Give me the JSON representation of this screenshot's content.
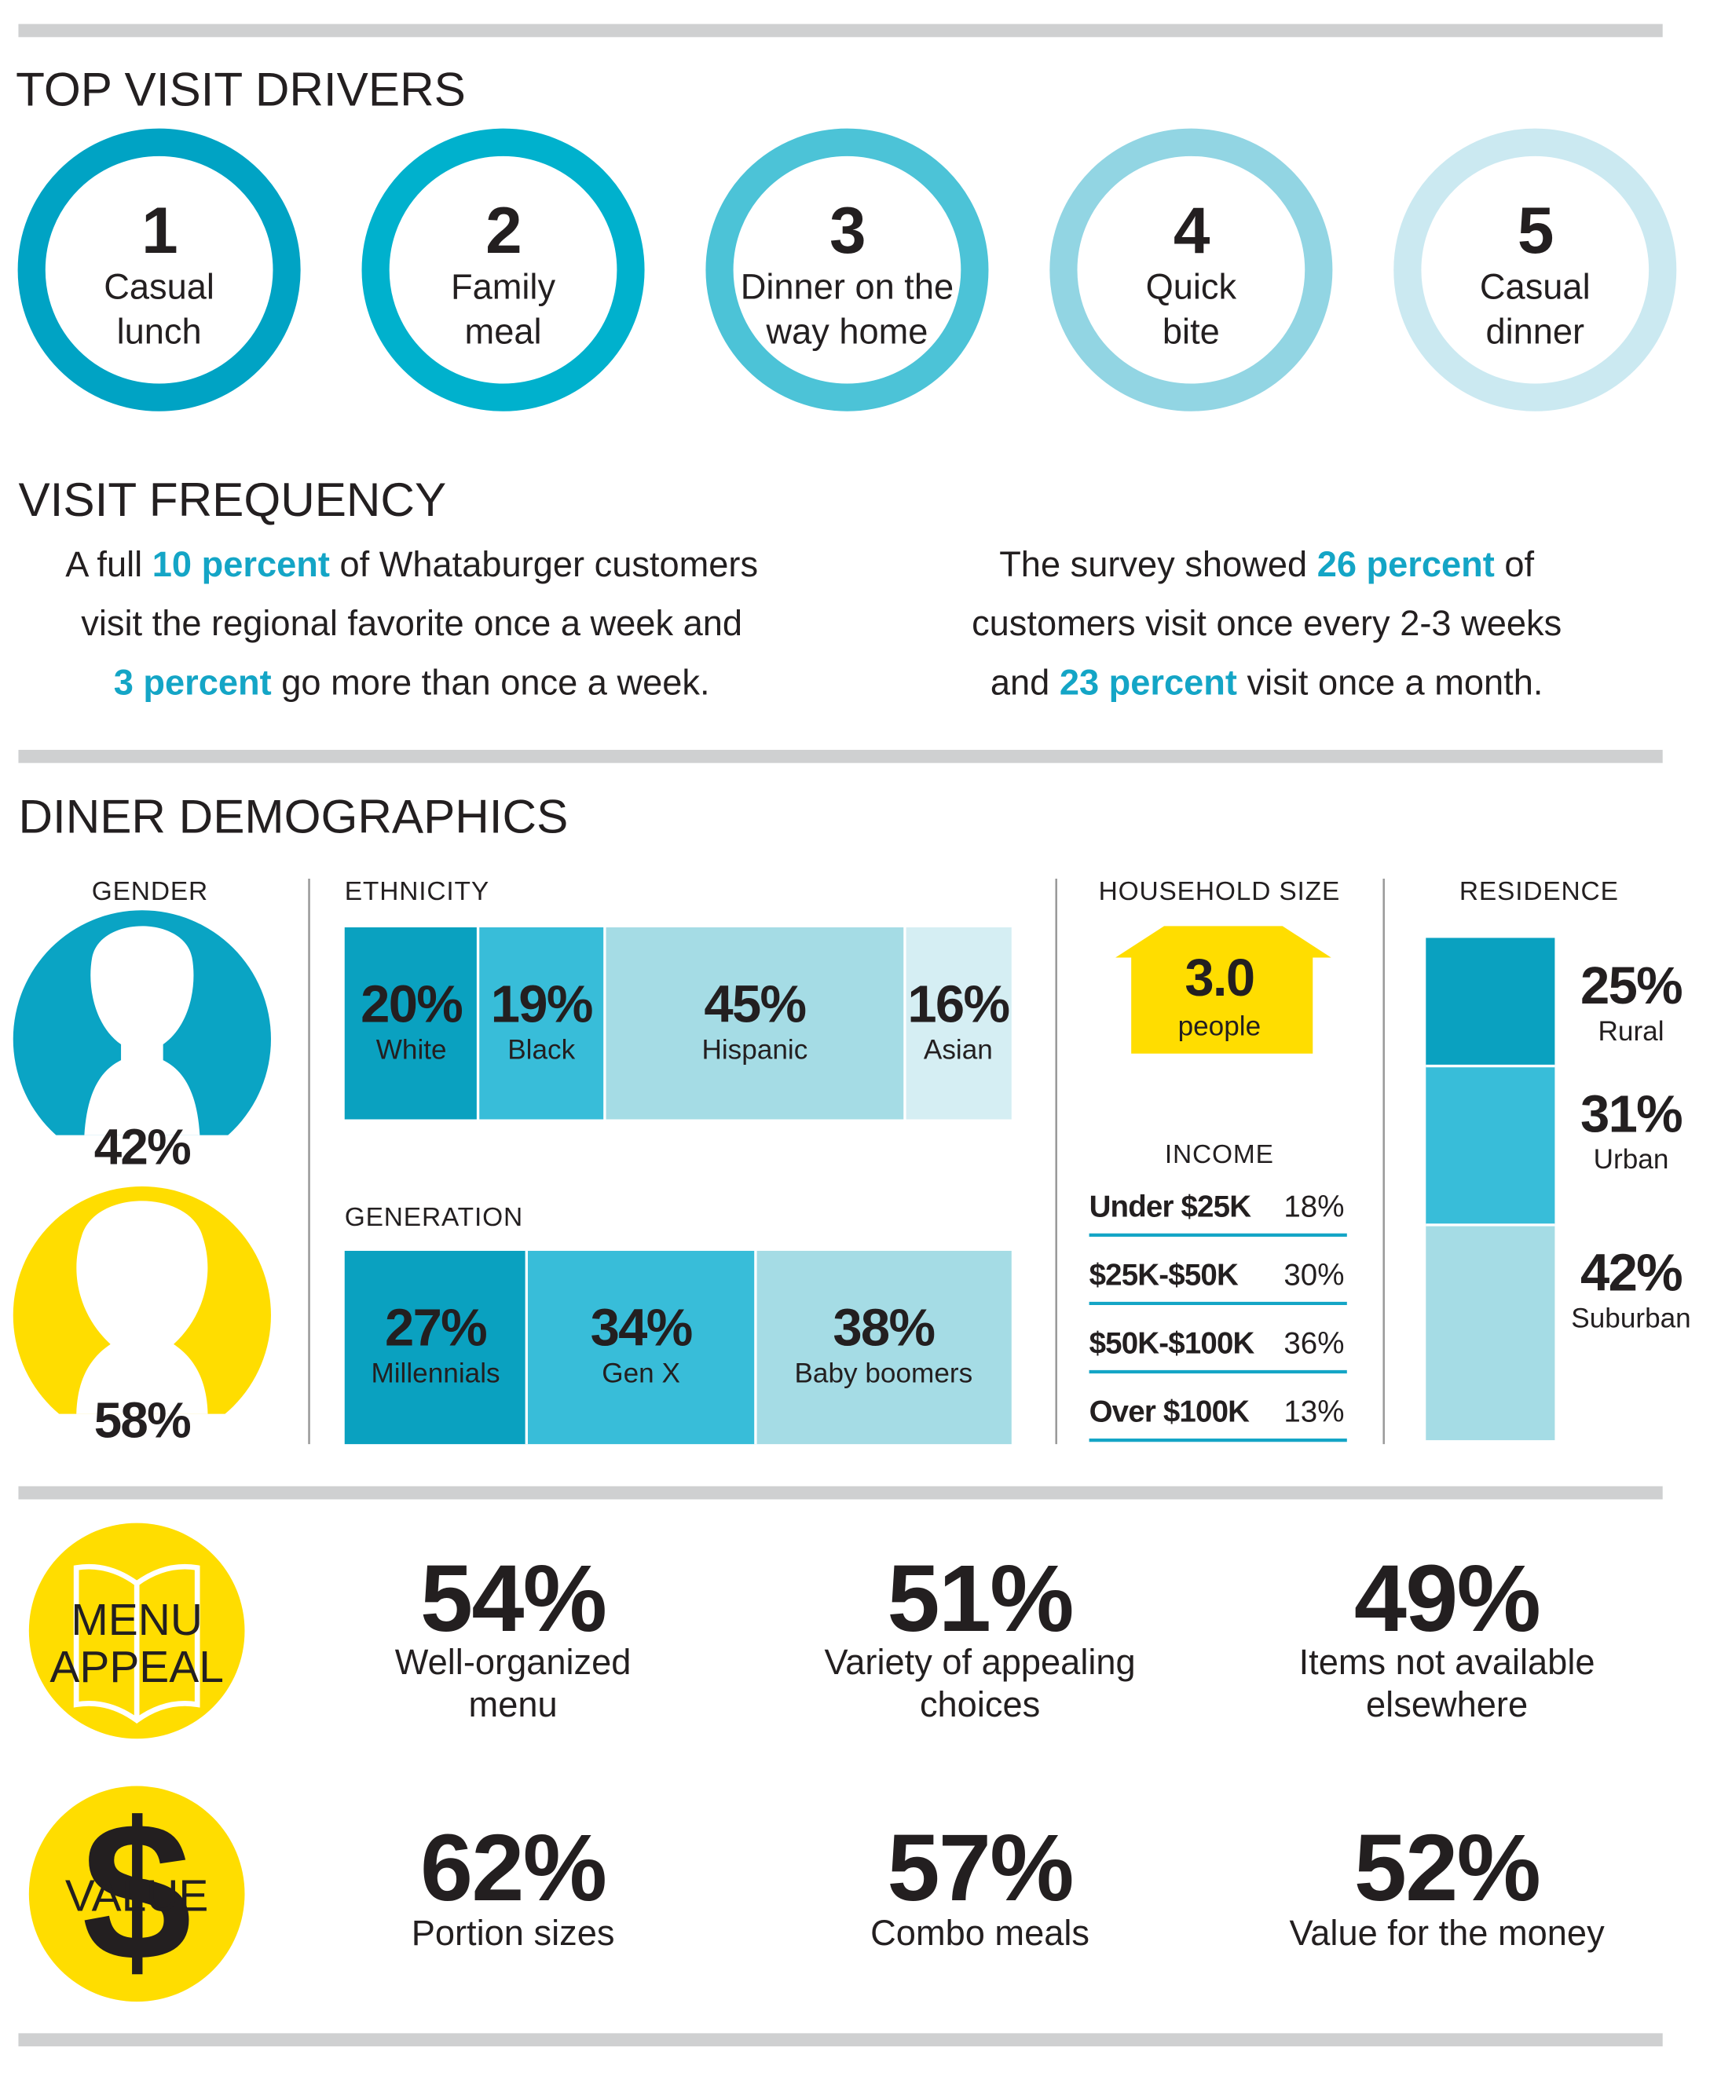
{
  "drivers": {
    "title": "TOP VISIT DRIVERS",
    "items": [
      {
        "rank": 1,
        "lines": [
          "Casual",
          "lunch"
        ],
        "color": "#00a3c4"
      },
      {
        "rank": 2,
        "lines": [
          "Family",
          "meal"
        ],
        "color": "#00b1cd"
      },
      {
        "rank": 3,
        "lines": [
          "Dinner on the",
          "way home"
        ],
        "color": "#4cc3d7"
      },
      {
        "rank": 4,
        "lines": [
          "Quick",
          "bite"
        ],
        "color": "#92d5e3"
      },
      {
        "rank": 5,
        "lines": [
          "Casual",
          "dinner"
        ],
        "color": "#cbe9f1"
      }
    ]
  },
  "frequency": {
    "title": "VISIT FREQUENCY",
    "highlight_color": "#14a5c6",
    "left": [
      [
        {
          "text": "A full "
        },
        {
          "text": "10 percent",
          "em": true
        },
        {
          "text": " of Whataburger customers"
        }
      ],
      [
        {
          "text": "visit the regional favorite once a week and"
        }
      ],
      [
        {
          "text": "3 percent",
          "em": true
        },
        {
          "text": " go more than once a week."
        }
      ]
    ],
    "right": [
      [
        {
          "text": "The survey showed "
        },
        {
          "text": "26 percent",
          "em": true
        },
        {
          "text": " of"
        }
      ],
      [
        {
          "text": "customers visit once every 2-3 weeks"
        }
      ],
      [
        {
          "text": "and "
        },
        {
          "text": "23 percent",
          "em": true
        },
        {
          "text": " visit once a month."
        }
      ]
    ]
  },
  "demographics": {
    "title": "DINER DEMOGRAPHICS",
    "gender": {
      "title": "GENDER",
      "items": [
        {
          "label": "42%",
          "color": "#0aa4c4"
        },
        {
          "label": "58%",
          "color": "#ffdd00"
        }
      ]
    },
    "ethnicity": {
      "title": "ETHNICITY",
      "items": [
        {
          "value": 20,
          "label": "20%",
          "name": "White",
          "color": "#0aa1c0"
        },
        {
          "value": 19,
          "label": "19%",
          "name": "Black",
          "color": "#38bdd9"
        },
        {
          "value": 45,
          "label": "45%",
          "name": "Hispanic",
          "color": "#a5dce5"
        },
        {
          "value": 16,
          "label": "16%",
          "name": "Asian",
          "color": "#d5eef3"
        }
      ]
    },
    "generation": {
      "title": "GENERATION",
      "items": [
        {
          "value": 27,
          "label": "27%",
          "name": "Millennials",
          "color": "#0aa1c0"
        },
        {
          "value": 34,
          "label": "34%",
          "name": "Gen X",
          "color": "#38bdd9"
        },
        {
          "value": 38,
          "label": "38%",
          "name": "Baby boomers",
          "color": "#a5dce5"
        }
      ]
    },
    "household": {
      "title": "HOUSEHOLD SIZE",
      "value": "3.0",
      "unit": "people",
      "color": "#ffdd00"
    },
    "income": {
      "title": "INCOME",
      "rows": [
        {
          "label": "Under $25K",
          "pct": "18%"
        },
        {
          "label": "$25K-$50K",
          "pct": "30%"
        },
        {
          "label": "$50K-$100K",
          "pct": "36%"
        },
        {
          "label": "Over $100K",
          "pct": "13%"
        }
      ]
    },
    "residence": {
      "title": "RESIDENCE",
      "items": [
        {
          "value": 25,
          "label": "25%",
          "name": "Rural",
          "color": "#0aa1c0"
        },
        {
          "value": 31,
          "label": "31%",
          "name": "Urban",
          "color": "#38bdd9"
        },
        {
          "value": 42,
          "label": "42%",
          "name": "Suburban",
          "color": "#a5dce5"
        }
      ]
    }
  },
  "appeal": {
    "icon_lines": [
      "MENU",
      "APPEAL"
    ],
    "items": [
      {
        "pct": "54%",
        "lines": [
          "Well-organized",
          "menu"
        ]
      },
      {
        "pct": "51%",
        "lines": [
          "Variety of appealing",
          "choices"
        ]
      },
      {
        "pct": "49%",
        "lines": [
          "Items not available",
          "elsewhere"
        ]
      }
    ]
  },
  "value": {
    "icon_symbol": "$",
    "icon_label": "VALUE",
    "items": [
      {
        "pct": "62%",
        "lines": [
          "Portion sizes"
        ]
      },
      {
        "pct": "57%",
        "lines": [
          "Combo meals"
        ]
      },
      {
        "pct": "52%",
        "lines": [
          "Value for the money"
        ]
      }
    ]
  }
}
